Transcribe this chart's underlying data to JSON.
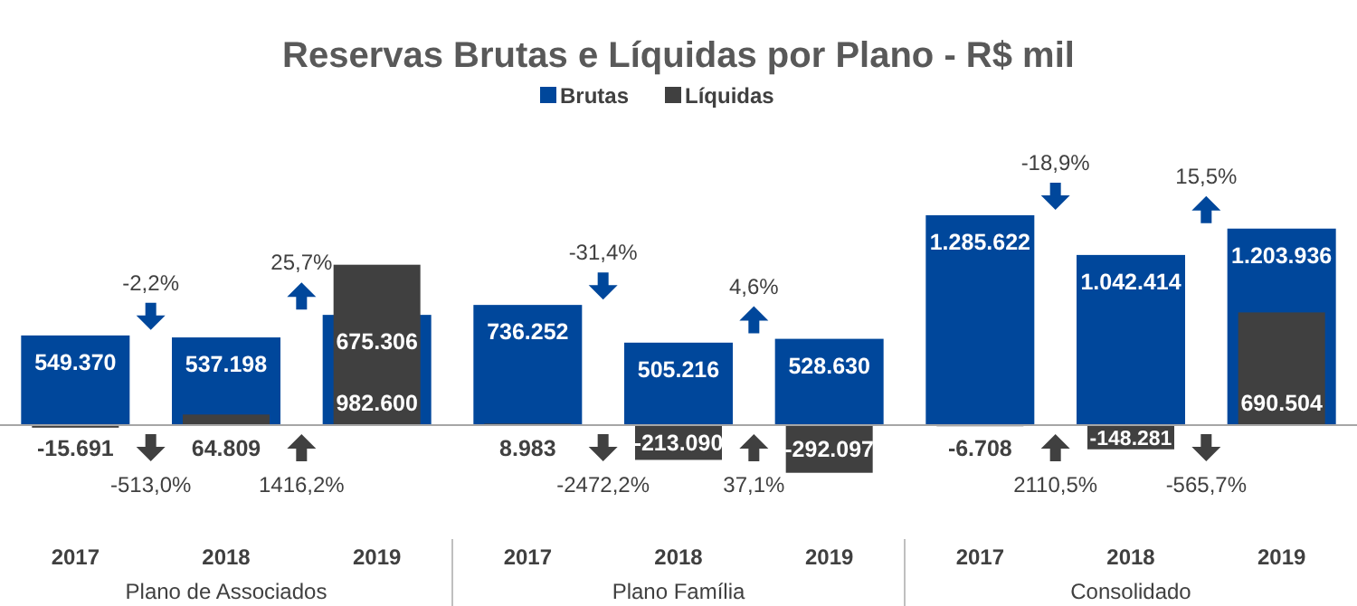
{
  "chart_data": [
    {
      "type": "bar",
      "title": "Reservas Brutas e Líquidas por Plano - R$ mil",
      "legend": "top",
      "tick_labels": "x",
      "xlabel": "Plano de Associados",
      "categories": [
        "2017",
        "2018",
        "2019"
      ],
      "series": [
        {
          "name": "Brutas",
          "color": "#00479b",
          "values": [
            549370,
            537198,
            675306
          ],
          "value_labels": [
            "549.370",
            "537.198",
            "675.306"
          ]
        },
        {
          "name": "Líquidas",
          "color": "#404040",
          "values": [
            -15691,
            64809,
            982600
          ],
          "value_labels": [
            "-15.691",
            "64.809",
            "982.600"
          ]
        }
      ],
      "annotations": [
        "-2,2%",
        "-513,0%",
        "25,7%",
        "1416,2%"
      ]
    },
    {
      "type": "bar",
      "tick_labels": "x",
      "xlabel": "Plano Família",
      "categories": [
        "2017",
        "2018",
        "2019"
      ],
      "series": [
        {
          "color": "#00479b",
          "values": [
            736252,
            505216,
            528630
          ],
          "value_labels": [
            "736.252",
            "505.216",
            "528.630"
          ]
        },
        {
          "color": "#404040",
          "values": [
            8983,
            -213090,
            -292097
          ],
          "value_labels": [
            "8.983",
            "-213.090",
            "-292.097"
          ]
        }
      ],
      "annotations": [
        "-31,4%",
        "-2472,2%",
        "4,6%",
        "37,1%"
      ]
    },
    {
      "type": "bar",
      "tick_labels": "x",
      "xlabel": "Consolidado",
      "categories": [
        "2017",
        "2018",
        "2019"
      ],
      "series": [
        {
          "color": "#00479b",
          "values": [
            1285622,
            1042414,
            1203936
          ],
          "value_labels": [
            "1.285.622",
            "1.042.414",
            "1.203.936"
          ]
        },
        {
          "color": "#404040",
          "values": [
            -6708,
            -148281,
            690504
          ],
          "value_labels": [
            "-6.708",
            "-148.281",
            "690.504"
          ]
        }
      ],
      "annotations": [
        "-18,9%",
        "2110,5%",
        "15,5%",
        "-565,7%"
      ]
    }
  ]
}
